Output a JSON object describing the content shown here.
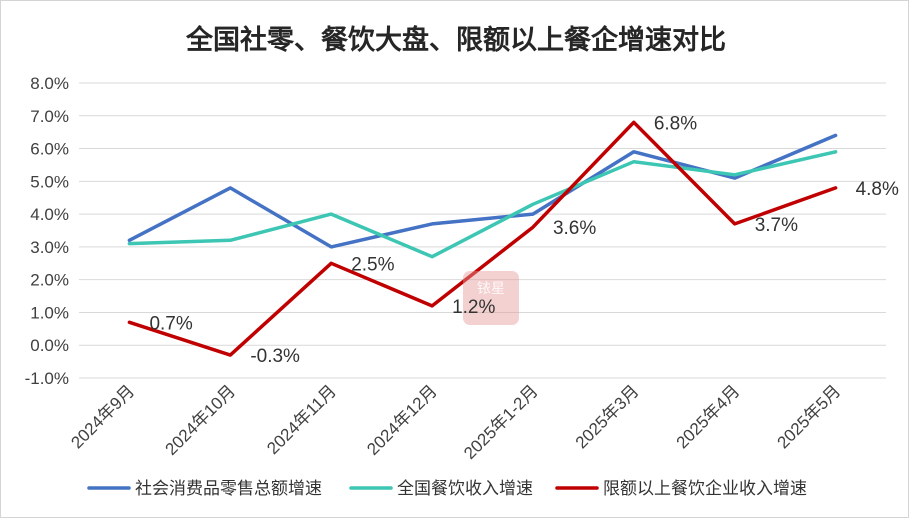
{
  "chart_data": {
    "type": "line",
    "title": "全国社零、餐饮大盘、限额以上餐企增速对比",
    "xlabel": "",
    "ylabel": "",
    "categories": [
      "2024年9月",
      "2024年10月",
      "2024年11月",
      "2024年12月",
      "2025年1-2月",
      "2025年3月",
      "2025年4月",
      "2025年5月"
    ],
    "ylim": [
      -1,
      8
    ],
    "yticks": [
      -1,
      0,
      1,
      2,
      3,
      4,
      5,
      6,
      7,
      8
    ],
    "ytick_labels": [
      "-1.0%",
      "0.0%",
      "1.0%",
      "2.0%",
      "3.0%",
      "4.0%",
      "5.0%",
      "6.0%",
      "7.0%",
      "8.0%"
    ],
    "grid": true,
    "legend": "bottom",
    "series": [
      {
        "name": "社会消费品零售总额增速",
        "color": "#4472C4",
        "values": [
          3.2,
          4.8,
          3.0,
          3.7,
          4.0,
          5.9,
          5.1,
          6.4
        ]
      },
      {
        "name": "全国餐饮收入增速",
        "color": "#3CC6B3",
        "values": [
          3.1,
          3.2,
          4.0,
          2.7,
          4.3,
          5.6,
          5.2,
          5.9
        ]
      },
      {
        "name": "限额以上餐饮企业收入增速",
        "color": "#C00000",
        "values": [
          0.7,
          -0.3,
          2.5,
          1.2,
          3.6,
          6.8,
          3.7,
          4.8
        ],
        "data_labels": [
          "0.7%",
          "-0.3%",
          "2.5%",
          "1.2%",
          "3.6%",
          "6.8%",
          "3.7%",
          "4.8%"
        ]
      }
    ]
  },
  "watermark": {
    "text": "铱星"
  }
}
